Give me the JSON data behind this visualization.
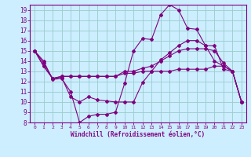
{
  "xlabel": "Windchill (Refroidissement éolien,°C)",
  "xlim": [
    -0.5,
    23.5
  ],
  "ylim": [
    8,
    19.5
  ],
  "xticks": [
    0,
    1,
    2,
    3,
    4,
    5,
    6,
    7,
    8,
    9,
    10,
    11,
    12,
    13,
    14,
    15,
    16,
    17,
    18,
    19,
    20,
    21,
    22,
    23
  ],
  "yticks": [
    8,
    9,
    10,
    11,
    12,
    13,
    14,
    15,
    16,
    17,
    18,
    19
  ],
  "background_color": "#cceeff",
  "grid_color": "#99cccc",
  "line_color": "#800080",
  "lines": [
    {
      "x": [
        0,
        1,
        2,
        3,
        4,
        5,
        6,
        7,
        8,
        9,
        10,
        11,
        12,
        13,
        14,
        15,
        16,
        17,
        18,
        19,
        20,
        21,
        22,
        23
      ],
      "y": [
        15,
        14,
        12.2,
        12.3,
        11,
        8,
        8.6,
        8.8,
        8.8,
        9.0,
        11.8,
        15,
        16.2,
        16.1,
        18.5,
        19.5,
        19.0,
        17.2,
        17.1,
        15.5,
        15.5,
        13.2,
        13.0,
        10.0
      ]
    },
    {
      "x": [
        0,
        1,
        2,
        3,
        4,
        5,
        6,
        7,
        8,
        9,
        10,
        11,
        12,
        13,
        14,
        15,
        16,
        17,
        18,
        19,
        20,
        21,
        22,
        23
      ],
      "y": [
        15,
        13.8,
        12.3,
        12.4,
        10.5,
        10.0,
        10.5,
        10.2,
        10.1,
        10.0,
        10.0,
        10.0,
        11.9,
        13.0,
        14.1,
        14.8,
        15.5,
        16.0,
        16.0,
        15.5,
        14.0,
        13.5,
        13.0,
        10.0
      ]
    },
    {
      "x": [
        0,
        1,
        2,
        3,
        4,
        5,
        6,
        7,
        8,
        9,
        10,
        11,
        12,
        13,
        14,
        15,
        16,
        17,
        18,
        19,
        20,
        21,
        22,
        23
      ],
      "y": [
        15,
        13.5,
        12.3,
        12.5,
        12.5,
        12.5,
        12.5,
        12.5,
        12.5,
        12.5,
        12.8,
        12.8,
        13.0,
        13.0,
        13.0,
        13.0,
        13.2,
        13.2,
        13.2,
        13.2,
        13.5,
        13.5,
        13.0,
        10.0
      ]
    },
    {
      "x": [
        0,
        1,
        2,
        3,
        4,
        5,
        6,
        7,
        8,
        9,
        10,
        11,
        12,
        13,
        14,
        15,
        16,
        17,
        18,
        19,
        20,
        21,
        22,
        23
      ],
      "y": [
        15,
        13.5,
        12.3,
        12.5,
        12.5,
        12.5,
        12.5,
        12.5,
        12.5,
        12.5,
        13.0,
        13.0,
        13.3,
        13.5,
        14.0,
        14.5,
        15.0,
        15.2,
        15.2,
        15.2,
        15.0,
        13.8,
        13.0,
        10.0
      ]
    }
  ]
}
